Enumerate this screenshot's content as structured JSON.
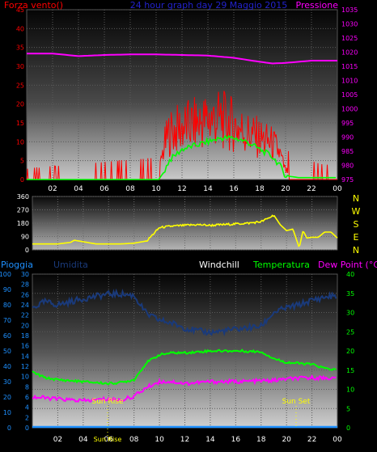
{
  "header": {
    "left_label": "Forza vento()",
    "center_title": "24 hour graph day 29 Maggio 2015",
    "right_label": "Pressione"
  },
  "compass": [
    "N",
    "W",
    "S",
    "E",
    "N"
  ],
  "legend": {
    "pioggia": "Pioggia",
    "umidita": "Umidita",
    "windchill": "Windchill",
    "temperatura": "Temperatura",
    "dewpoint": "Dew Point (°C)"
  },
  "markers": {
    "sunrise": "Sun Rise",
    "sunset": "Sun Set"
  },
  "colors": {
    "wind": "#ff0000",
    "gust_avg": "#00ff00",
    "pressure": "#ff00ff",
    "direction": "#ffff00",
    "humidity": "#1a3a7a",
    "rain": "#1e90ff",
    "temperature": "#00ff00",
    "dewpoint": "#ff00ff"
  },
  "chart_data": [
    {
      "type": "line",
      "name": "wind-pressure",
      "x_ticks": [
        "02",
        "04",
        "06",
        "08",
        "10",
        "12",
        "14",
        "16",
        "18",
        "20",
        "22",
        "00"
      ],
      "y_left_ticks": [
        0,
        5,
        10,
        15,
        20,
        25,
        30,
        35,
        40,
        45
      ],
      "y_left_lim": [
        0,
        45
      ],
      "y_right_ticks": [
        975,
        980,
        985,
        990,
        995,
        1000,
        1005,
        1010,
        1015,
        1020,
        1025,
        1030,
        1035
      ],
      "y_right_lim": [
        975,
        1035
      ],
      "series": [
        {
          "axis": "right",
          "hours": [
            0,
            2,
            4,
            6,
            8,
            10,
            12,
            14,
            16,
            18,
            19,
            20,
            22,
            24
          ],
          "values": [
            1019.5,
            1019.5,
            1018.6,
            1019.0,
            1019.2,
            1019.2,
            1019.0,
            1018.8,
            1018.0,
            1016.6,
            1016.0,
            1016.2,
            1017.0,
            1017.0
          ]
        },
        {
          "axis": "left",
          "hours": [
            0,
            10.2,
            10.6,
            11,
            12,
            13,
            14,
            15,
            16,
            17,
            18,
            19,
            19.5,
            20,
            21,
            22,
            23,
            24
          ],
          "values": [
            0,
            0,
            2,
            5,
            8,
            9,
            10,
            11,
            11,
            10,
            8,
            6,
            4,
            1,
            0.5,
            0.5,
            0.5,
            0.5
          ]
        },
        {
          "axis": "left",
          "style": "spiky",
          "hours": [
            0,
            10.2,
            10.6,
            11,
            12,
            13,
            14,
            15,
            16,
            17,
            18,
            19,
            19.5,
            20,
            21,
            22,
            23,
            24
          ],
          "values": [
            0.5,
            2,
            12,
            17,
            19,
            20,
            22,
            22,
            20,
            17,
            15,
            13,
            10,
            3,
            2,
            1.5,
            1,
            1
          ]
        }
      ]
    },
    {
      "type": "line",
      "name": "wind-direction",
      "x_ticks": [],
      "y_ticks": [
        0,
        90,
        180,
        270,
        360
      ],
      "y_lim": [
        0,
        360
      ],
      "series": [
        {
          "hours": [
            0,
            2,
            3,
            3.3,
            5,
            7,
            8,
            9,
            10,
            11,
            12,
            13,
            14,
            15,
            16,
            17,
            18,
            18.5,
            19,
            19.5,
            20,
            20.5,
            21,
            21.3,
            21.6,
            22,
            22.5,
            23,
            23.5,
            24
          ],
          "values": [
            40,
            40,
            50,
            65,
            40,
            40,
            45,
            60,
            150,
            160,
            165,
            170,
            165,
            170,
            175,
            180,
            190,
            210,
            235,
            170,
            130,
            140,
            15,
            130,
            80,
            85,
            85,
            120,
            120,
            80
          ]
        }
      ]
    },
    {
      "type": "line",
      "name": "temperature-humidity",
      "x_ticks": [
        "02",
        "04",
        "06",
        "08",
        "10",
        "12",
        "14",
        "16",
        "18",
        "20",
        "22",
        "00"
      ],
      "y_far_left_ticks": [
        0,
        10,
        20,
        30,
        40,
        50,
        60,
        70,
        80,
        90,
        100
      ],
      "y_far_left_lim": [
        0,
        100
      ],
      "y_left_ticks": [
        0,
        2,
        4,
        6,
        8,
        10,
        12,
        14,
        16,
        18,
        20,
        22,
        24,
        26,
        28,
        30
      ],
      "y_left_lim": [
        0,
        30
      ],
      "y_right_ticks": [
        0,
        5,
        10,
        15,
        20,
        25,
        30,
        35,
        40
      ],
      "y_right_lim": [
        0,
        40
      ],
      "series": [
        {
          "axis": "far_left",
          "hours": [
            0,
            1,
            2,
            4,
            6,
            7,
            8,
            9,
            10,
            11,
            12,
            13,
            14,
            16,
            18,
            19,
            20,
            21,
            22,
            23,
            24
          ],
          "values": [
            78,
            82,
            80,
            84,
            87,
            87,
            86,
            74,
            70,
            68,
            65,
            63,
            62,
            64,
            66,
            75,
            78,
            80,
            83,
            85,
            86
          ]
        },
        {
          "axis": "right",
          "hours": [
            0,
            1,
            2,
            4,
            6,
            7,
            8,
            9,
            10,
            11,
            12,
            14,
            16,
            18,
            19,
            20,
            22,
            23,
            24
          ],
          "values": [
            14.5,
            13,
            12.5,
            12,
            11.5,
            11.8,
            12.5,
            17,
            19,
            19.5,
            19.5,
            20,
            20,
            19.8,
            18,
            17,
            16.5,
            15.5,
            15
          ]
        },
        {
          "axis": "right",
          "hours": [
            0,
            2,
            4,
            6,
            7,
            8,
            9,
            10,
            11,
            12,
            14,
            16,
            18,
            19,
            20,
            22,
            23,
            24
          ],
          "values": [
            8,
            7.5,
            7,
            7.5,
            7.2,
            8.2,
            10.5,
            12,
            12,
            11.5,
            12,
            12,
            12.2,
            12.3,
            12.7,
            13,
            13,
            12.8
          ]
        },
        {
          "axis": "far_left",
          "hours": [
            0,
            24
          ],
          "values": [
            0,
            0
          ]
        }
      ]
    }
  ]
}
